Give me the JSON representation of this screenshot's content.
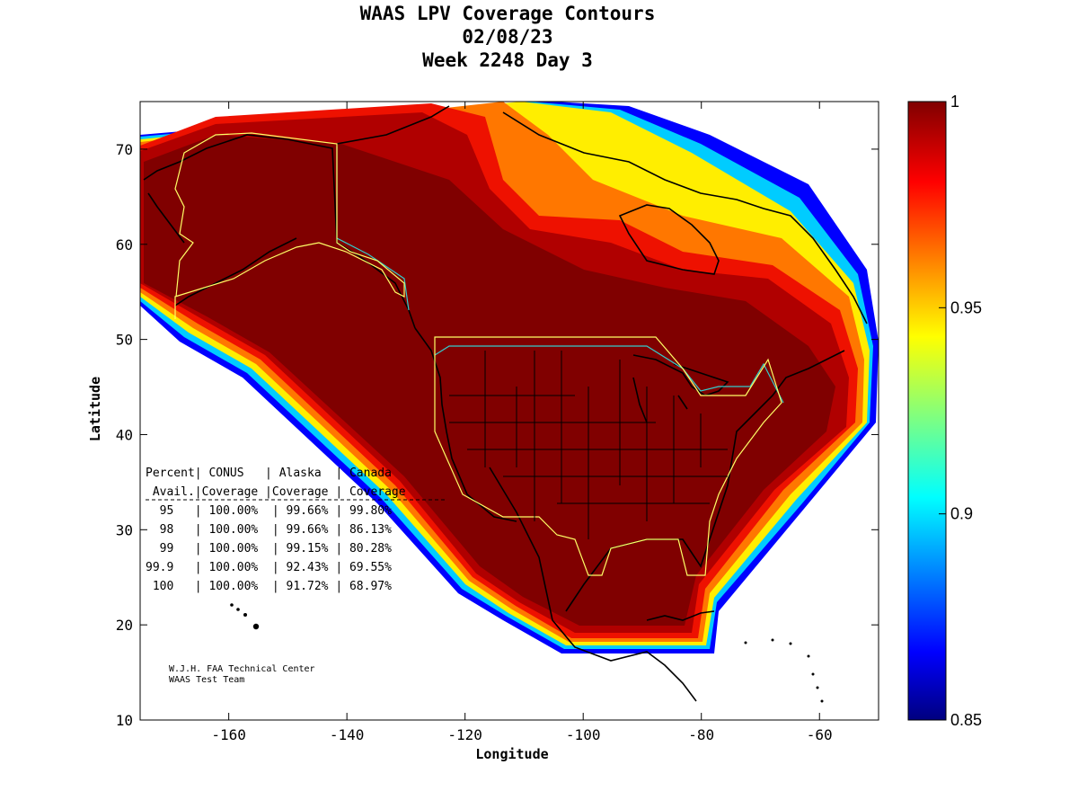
{
  "title": {
    "line1": "WAAS LPV Coverage Contours",
    "line2": "02/08/23",
    "line3": "Week 2248 Day 3"
  },
  "axes": {
    "xlabel": "Longitude",
    "ylabel": "Latitude",
    "x_ticks": [
      "-160",
      "-140",
      "-120",
      "-100",
      "-80",
      "-60"
    ],
    "y_ticks": [
      "10",
      "20",
      "30",
      "40",
      "50",
      "60",
      "70"
    ],
    "xlim": [
      -175,
      -50
    ],
    "ylim": [
      10,
      75
    ]
  },
  "colorbar": {
    "ticks": [
      "1",
      "0.95",
      "0.9",
      "0.85"
    ],
    "range": [
      0.85,
      1
    ],
    "colormap": "jet"
  },
  "table": {
    "header1": "Percent| CONUS   | Alaska  | Canada",
    "header2": " Avail.|Coverage |Coverage | Coverage",
    "rows": [
      "  95   | 100.00%  | 99.66% | 99.80%",
      "  98   | 100.00%  | 99.66% | 86.13%",
      "  99   | 100.00%  | 99.15% | 80.28%",
      "99.9   | 100.00%  | 92.43% | 69.55%",
      " 100   | 100.00%  | 91.72% | 68.97%"
    ]
  },
  "credit": {
    "line1": "W.J.H. FAA Technical Center",
    "line2": "WAAS Test Team"
  },
  "colors": {
    "core": "#800000",
    "frame": "#000000",
    "service_boundary": "#ffff66",
    "border_cyan": "#33cccc"
  }
}
